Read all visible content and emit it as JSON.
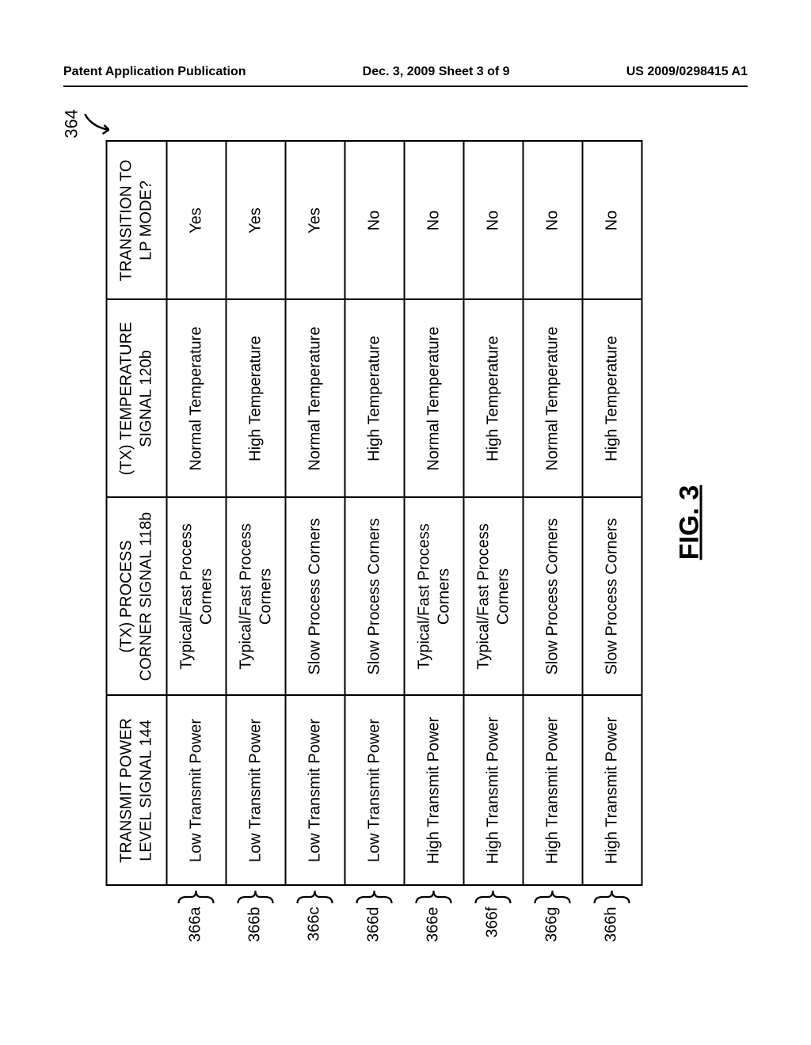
{
  "header": {
    "left": "Patent Application Publication",
    "center": "Dec. 3, 2009   Sheet 3 of 9",
    "right": "US 2009/0298415 A1"
  },
  "figure": {
    "reference": "364",
    "caption": "FIG. 3",
    "columns": [
      "TRANSMIT POWER LEVEL SIGNAL 144",
      "(TX) PROCESS CORNER SIGNAL 118b",
      "(TX) TEMPERATURE SIGNAL 120b",
      "TRANSITION TO LP MODE?"
    ],
    "rows": [
      {
        "label": "366a",
        "c1": "Low Transmit Power",
        "c2": "Typical/Fast Process Corners",
        "c3": "Normal Temperature",
        "c4": "Yes"
      },
      {
        "label": "366b",
        "c1": "Low Transmit Power",
        "c2": "Typical/Fast Process Corners",
        "c3": "High Temperature",
        "c4": "Yes"
      },
      {
        "label": "366c",
        "c1": "Low Transmit Power",
        "c2": "Slow Process Corners",
        "c3": "Normal Temperature",
        "c4": "Yes"
      },
      {
        "label": "366d",
        "c1": "Low Transmit Power",
        "c2": "Slow Process Corners",
        "c3": "High Temperature",
        "c4": "No"
      },
      {
        "label": "366e",
        "c1": "High Transmit Power",
        "c2": "Typical/Fast Process Corners",
        "c3": "Normal Temperature",
        "c4": "No"
      },
      {
        "label": "366f",
        "c1": "High Transmit Power",
        "c2": "Typical/Fast Process Corners",
        "c3": "High Temperature",
        "c4": "No"
      },
      {
        "label": "366g",
        "c1": "High Transmit Power",
        "c2": "Slow Process Corners",
        "c3": "Normal Temperature",
        "c4": "No"
      },
      {
        "label": "366h",
        "c1": "High Transmit Power",
        "c2": "Slow Process Corners",
        "c3": "High Temperature",
        "c4": "No"
      }
    ]
  },
  "colors": {
    "border": "#000000",
    "background": "#ffffff",
    "text": "#000000"
  }
}
